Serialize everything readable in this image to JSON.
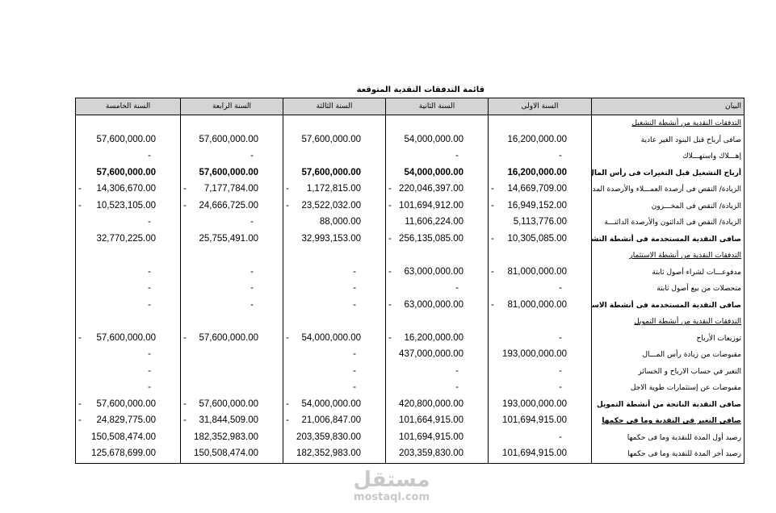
{
  "title": "قائمة التدفقات النقدية المتوقعة",
  "headers": [
    "البيان",
    "السنة الاولى",
    "السنة الثانية",
    "السنة الثالثة",
    "السنة الرابعة",
    "السنة الخامسة"
  ],
  "rows": [
    {
      "label": "التدفقات النقدية من أنشطة التشغيل",
      "style": "heading",
      "values": [
        "",
        "",
        "",
        "",
        ""
      ]
    },
    {
      "label": "صافى أرباح قبل البنود الغير عادية",
      "values": [
        "16,200,000.00",
        "54,000,000.00",
        "57,600,000.00",
        "57,600,000.00",
        "57,600,000.00"
      ]
    },
    {
      "label": "إهـــلاك واستهـــلاك",
      "values": [
        "-",
        "-",
        "",
        "-",
        "-"
      ]
    },
    {
      "label": "أرباح التشغيل قبل التغيرات فى رأس المال العامل",
      "style": "bold",
      "bold_values": true,
      "values": [
        "16,200,000.00",
        "54,000,000.00",
        "57,600,000.00",
        "57,600,000.00",
        "57,600,000.00"
      ]
    },
    {
      "label": "الزيادة/ النقص فى أرصدة العمـــلاء والأرصدة المدينة",
      "values": [
        "- 14,669,709.00",
        "- 220,046,397.00",
        "- 1,172,815.00",
        "- 7,177,784.00",
        "- 14,306,670.00"
      ]
    },
    {
      "label": "الزيادة/ النقص فى المخـــزون",
      "values": [
        "- 16,949,152.00",
        "- 101,694,912.00",
        "- 23,522,032.00",
        "- 24,666,725.00",
        "- 10,523,105.00"
      ]
    },
    {
      "label": "الزيادة/ النقص فى الدائنون والأرصدة الدائنـــة",
      "values": [
        "5,113,776.00",
        "11,606,224.00",
        "88,000.00",
        "-",
        "-"
      ]
    },
    {
      "label": "صافى النقدية المستخدمة فى أنشطة التشغيل",
      "style": "bold",
      "values": [
        "- 10,305,085.00",
        "- 256,135,085.00",
        "32,993,153.00",
        "25,755,491.00",
        "32,770,225.00"
      ]
    },
    {
      "label": "التدفقات النقدية من أنشطة الاستثمار",
      "style": "heading",
      "values": [
        "",
        "",
        "",
        "",
        ""
      ]
    },
    {
      "label": "مدفوعـــات لشراء أصول ثابتة",
      "values": [
        "- 81,000,000.00",
        "- 63,000,000.00",
        "-",
        "-",
        "-"
      ]
    },
    {
      "label": "متحصلات من بيع أصول ثابتة",
      "values": [
        "-",
        "-",
        "-",
        "-",
        "-"
      ]
    },
    {
      "label": "صافى النقدية المستخدمة فى أنشطة الاستثمار",
      "style": "bold",
      "values": [
        "- 81,000,000.00",
        "- 63,000,000.00",
        "-",
        "-",
        "-"
      ]
    },
    {
      "label": "التدفقات النقدية من أنشطة التمويل",
      "style": "heading",
      "values": [
        "",
        "",
        "",
        "",
        ""
      ]
    },
    {
      "label": "توزيعات الأرباح",
      "values": [
        "-",
        "- 16,200,000.00",
        "- 54,000,000.00",
        "- 57,600,000.00",
        "- 57,600,000.00"
      ]
    },
    {
      "label": "مقبوضات من زيادة رأس المـــال",
      "values": [
        "193,000,000.00",
        "437,000,000.00",
        "-",
        "",
        "-"
      ]
    },
    {
      "label": "التغير في حساب الارباح و الخسائر",
      "values": [
        "-",
        "-",
        "-",
        "",
        "-"
      ]
    },
    {
      "label": "مقبوضات عن إستثمارات طوية الاجل",
      "values": [
        "-",
        "-",
        "-",
        "",
        "-"
      ]
    },
    {
      "label": "صافى النقدية الناتجة من أنشطة التمويل",
      "style": "bold",
      "values": [
        "193,000,000.00",
        "420,800,000.00",
        "- 54,000,000.00",
        "- 57,600,000.00",
        "- 57,600,000.00"
      ]
    },
    {
      "label": "صافى التغير فى النقدية وما فى حكمها",
      "style": "bold-underline",
      "values": [
        "101,694,915.00",
        "101,664,915.00",
        "- 21,006,847.00",
        "- 31,844,509.00",
        "- 24,829,775.00"
      ]
    },
    {
      "label": "رصيد أول المدة للنقدية وما فى حكمها",
      "values": [
        "-",
        "101,694,915.00",
        "203,359,830.00",
        "182,352,983.00",
        "150,508,474.00"
      ]
    },
    {
      "label": "رصيد آخر المدة للنقدية وما فى حكمها",
      "values": [
        "101,694,915.00",
        "203,359,830.00",
        "182,352,983.00",
        "150,508,474.00",
        "125,678,699.00"
      ]
    }
  ],
  "watermark": {
    "arabic": "مستقل",
    "latin": "mostaql.com"
  }
}
